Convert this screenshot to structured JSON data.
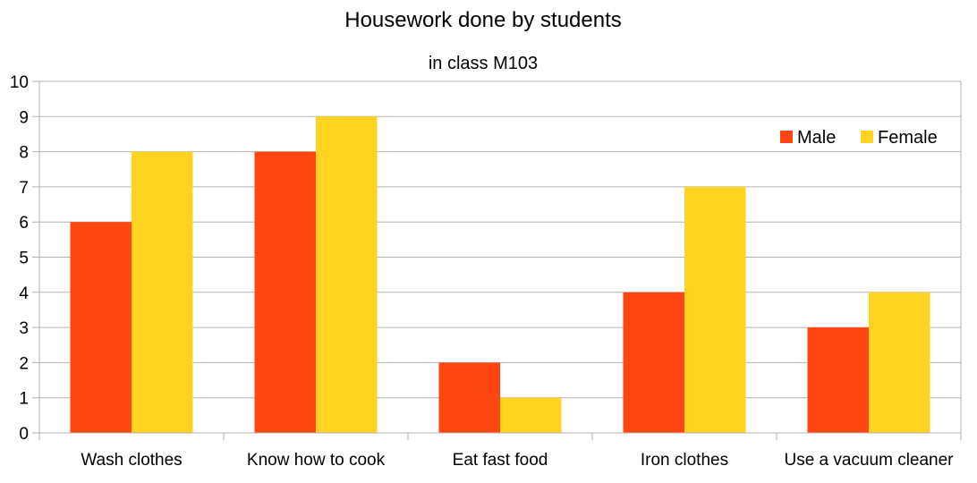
{
  "chart_data": {
    "type": "bar",
    "title": "Housework done by students",
    "subtitle": "in class M103",
    "categories": [
      "Wash clothes",
      "Know how to cook",
      "Eat fast food",
      "Iron clothes",
      "Use a vacuum cleaner"
    ],
    "series": [
      {
        "name": "Male",
        "color": "#ff4512",
        "values": [
          6,
          8,
          2,
          4,
          3
        ]
      },
      {
        "name": "Female",
        "color": "#ffd320",
        "values": [
          8,
          9,
          1,
          7,
          4
        ]
      }
    ],
    "ylim": [
      0,
      10
    ],
    "yticks": [
      "0",
      "1",
      "2",
      "3",
      "4",
      "5",
      "6",
      "7",
      "8",
      "9",
      "10"
    ],
    "grid": true,
    "legend_position": "top-right",
    "gridline_color": "#b3b3b3"
  }
}
